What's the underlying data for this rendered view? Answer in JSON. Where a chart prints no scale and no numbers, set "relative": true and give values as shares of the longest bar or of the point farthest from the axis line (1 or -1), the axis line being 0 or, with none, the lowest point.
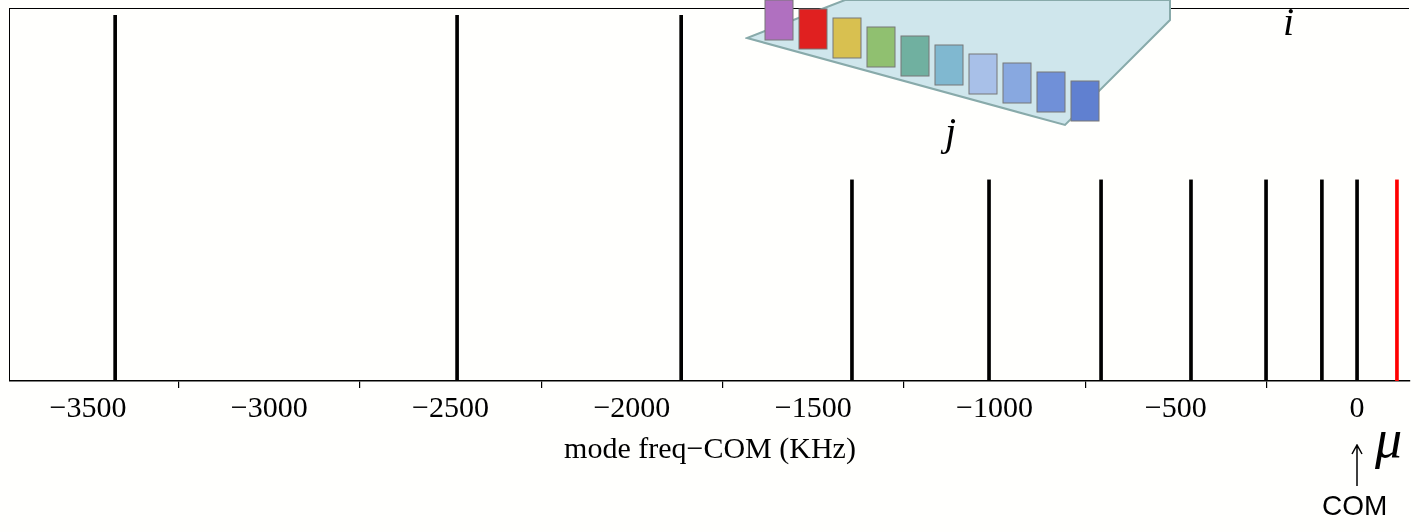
{
  "chart_data": {
    "type": "bar",
    "relative": true,
    "x": [
      -3425,
      -2482,
      -1864,
      -1393,
      -1015,
      -706,
      -458,
      -251,
      -97,
      0,
      110
    ],
    "values": [
      1,
      1,
      1,
      0.55,
      0.55,
      0.55,
      0.55,
      0.55,
      0.55,
      0.55,
      0.55
    ],
    "colors": [
      "#000000",
      "#000000",
      "#000000",
      "#000000",
      "#000000",
      "#000000",
      "#000000",
      "#000000",
      "#000000",
      "#000000",
      "#ff0000"
    ],
    "xlim": [
      -3715,
      146
    ],
    "xticks": [
      -3500,
      -3000,
      -2500,
      -2000,
      -1500,
      -1000,
      -500,
      0
    ],
    "xlabel": "mode freq−COM (KHz)",
    "annotations": [
      "COM",
      "μ",
      "i",
      "j"
    ],
    "grid": false,
    "legend": false
  }
}
